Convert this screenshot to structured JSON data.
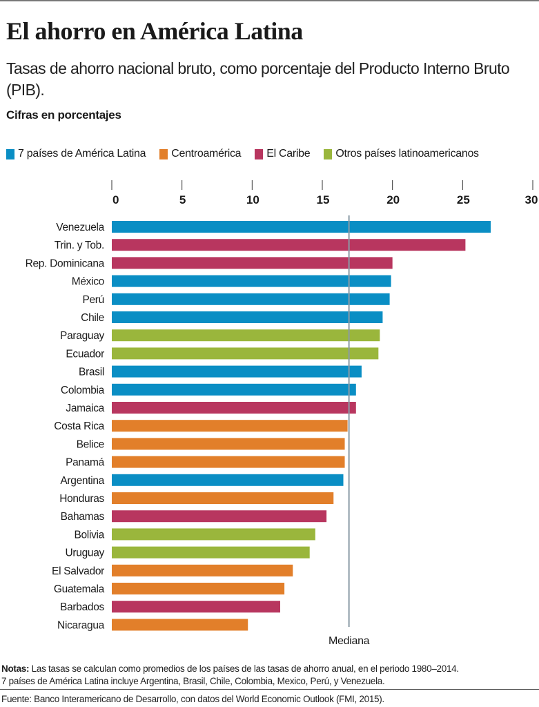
{
  "header": {
    "title": "El ahorro en América Latina",
    "subtitle": "Tasas de ahorro nacional bruto, como porcentaje del Producto Interno Bruto (PIB).",
    "units": "Cifras en porcentajes"
  },
  "legend": [
    {
      "label": "7 países de América Latina",
      "color": "#0a8ec4"
    },
    {
      "label": "Centroamérica",
      "color": "#e27f2a"
    },
    {
      "label": "El Caribe",
      "color": "#b8365f"
    },
    {
      "label": "Otros países latinoamericanos",
      "color": "#9ab63c"
    }
  ],
  "chart_data": {
    "type": "bar",
    "orientation": "horizontal",
    "title": "El ahorro en América Latina",
    "xlabel": "",
    "ylabel": "",
    "xlim": [
      0,
      30
    ],
    "xticks": [
      0,
      5,
      10,
      15,
      20,
      25,
      30
    ],
    "grid": false,
    "legend_position": "top",
    "groups": {
      "7 países de América Latina": "#0a8ec4",
      "Centroamérica": "#e27f2a",
      "El Caribe": "#b8365f",
      "Otros países latinoamericanos": "#9ab63c"
    },
    "categories": [
      "Venezuela",
      "Trin. y Tob.",
      "Rep. Dominicana",
      "México",
      "Perú",
      "Chile",
      "Paraguay",
      "Ecuador",
      "Brasil",
      "Colombia",
      "Jamaica",
      "Costa Rica",
      "Belice",
      "Panamá",
      "Argentina",
      "Honduras",
      "Bahamas",
      "Bolivia",
      "Uruguay",
      "El Salvador",
      "Guatemala",
      "Barbados",
      "Nicaragua"
    ],
    "values": [
      27.0,
      25.2,
      20.0,
      19.9,
      19.8,
      19.3,
      19.1,
      19.0,
      17.8,
      17.4,
      17.4,
      16.8,
      16.6,
      16.6,
      16.5,
      15.8,
      15.3,
      14.5,
      14.1,
      12.9,
      12.3,
      12.0,
      9.7
    ],
    "group_of": [
      "7 países de América Latina",
      "El Caribe",
      "El Caribe",
      "7 países de América Latina",
      "7 países de América Latina",
      "7 países de América Latina",
      "Otros países latinoamericanos",
      "Otros países latinoamericanos",
      "7 países de América Latina",
      "7 países de América Latina",
      "El Caribe",
      "Centroamérica",
      "Centroamérica",
      "Centroamérica",
      "7 países de América Latina",
      "Centroamérica",
      "El Caribe",
      "Otros países latinoamericanos",
      "Otros países latinoamericanos",
      "Centroamérica",
      "Centroamérica",
      "El Caribe",
      "Centroamérica"
    ],
    "reference_line": {
      "label": "Mediana",
      "value": 16.9,
      "color": "#8a9aa6"
    }
  },
  "footer": {
    "notes_label": "Notas:",
    "notes_text": " Las tasas se calculan como promedios de los países de las tasas de ahorro anual, en el periodo 1980–2014.",
    "notes_line2": "7 países de América Latina incluye Argentina, Brasil, Chile, Colombia, Mexico, Perú, y Venezuela.",
    "source": "Fuente: Banco Interamericano de Desarrollo, con datos del  World Economic Outlook (FMI, 2015)."
  }
}
